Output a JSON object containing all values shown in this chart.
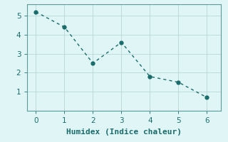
{
  "x": [
    0,
    1,
    2,
    3,
    4,
    5,
    6
  ],
  "y": [
    5.2,
    4.4,
    2.5,
    3.6,
    1.8,
    1.5,
    0.7
  ],
  "line_color": "#1a6b6b",
  "marker_color": "#1a6b6b",
  "background_color": "#e0f5f5",
  "grid_color": "#b8d8d8",
  "spine_color": "#5a9a9a",
  "xlabel": "Humidex (Indice chaleur)",
  "xlim": [
    -0.3,
    6.5
  ],
  "ylim": [
    0,
    5.6
  ],
  "xticks": [
    0,
    1,
    2,
    3,
    4,
    5,
    6
  ],
  "yticks": [
    1,
    2,
    3,
    4,
    5
  ],
  "xlabel_fontsize": 8,
  "tick_fontsize": 7.5,
  "line_width": 1.0,
  "marker_size": 3.5
}
